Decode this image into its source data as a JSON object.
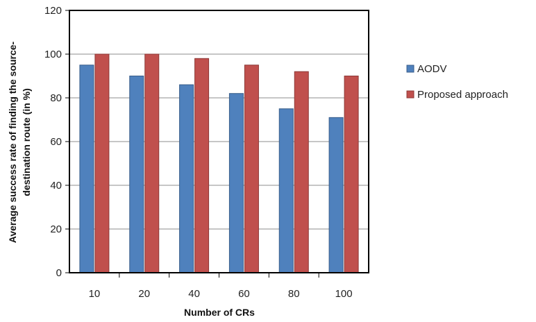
{
  "chart_data": {
    "type": "bar",
    "categories": [
      "10",
      "20",
      "40",
      "60",
      "80",
      "100"
    ],
    "series": [
      {
        "name": "AODV",
        "color": "#4f81bd",
        "values": [
          95,
          90,
          86,
          82,
          75,
          71
        ]
      },
      {
        "name": "Proposed approach",
        "color": "#c0504d",
        "values": [
          100,
          100,
          98,
          95,
          92,
          90
        ]
      }
    ],
    "xlabel": "Number of CRs",
    "ylabel_lines": [
      "Average success rate  of finding the source-",
      "destination route (in %)"
    ],
    "ylim": [
      0,
      120
    ],
    "yticks": [
      0,
      20,
      40,
      60,
      80,
      100,
      120
    ],
    "grid": true,
    "legend": "right"
  }
}
